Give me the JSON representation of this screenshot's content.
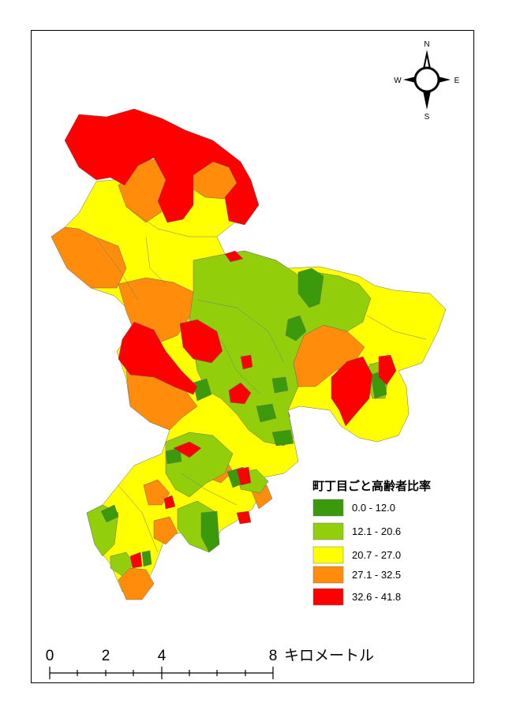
{
  "legend": {
    "title": "町丁目ごと高齢者比率",
    "classes": [
      {
        "label": "0.0  -  12.0",
        "color": "#3a9a0c"
      },
      {
        "label": "12.1  -  20.6",
        "color": "#92cf0a"
      },
      {
        "label": "20.7  -  27.0",
        "color": "#ffff00"
      },
      {
        "label": "27.1  -  32.5",
        "color": "#ff8c0a"
      },
      {
        "label": "32.6  -  41.8",
        "color": "#ff0000"
      }
    ]
  },
  "compass": {
    "n": "N",
    "s": "S",
    "e": "E",
    "w": "W"
  },
  "scalebar": {
    "ticks": [
      "0",
      "2",
      "4",
      "8"
    ],
    "unit": "キロメートル"
  },
  "icons": {
    "compass": "north-arrow-icon"
  }
}
